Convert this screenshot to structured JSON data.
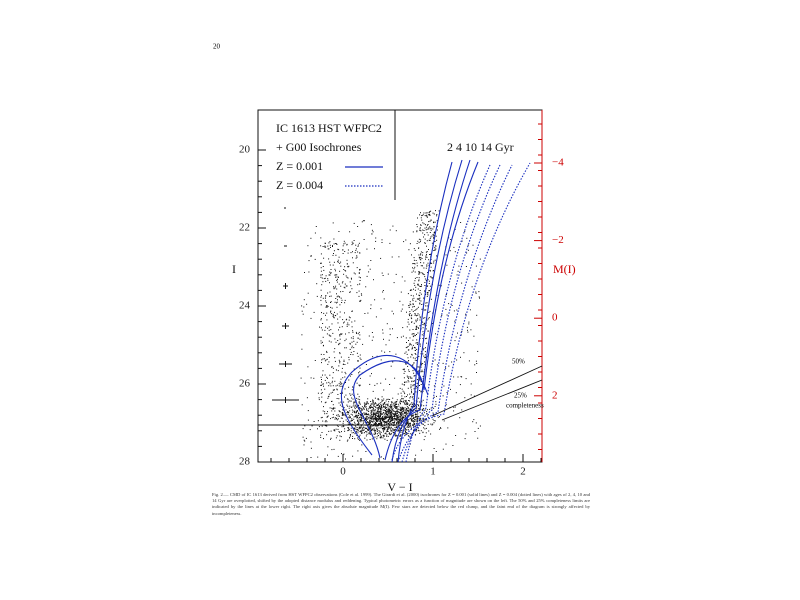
{
  "page_number": "20",
  "figure": {
    "legend": [
      "IC 1613 HST WFPC2",
      "+ G00 Isochrones",
      "Z = 0.001",
      "Z = 0.004"
    ],
    "ages_label": "2 4 10 14  Gyr",
    "y_label": "I",
    "x_label": "V − I",
    "y2_label": "M(I)",
    "y_tick_labels": [
      "20",
      "22",
      "24",
      "26",
      "28"
    ],
    "x_tick_labels": [
      "0",
      "1",
      "2"
    ],
    "y2_tick_labels": [
      "−4",
      "−2",
      "0",
      "2"
    ],
    "completeness_labels": [
      "50%",
      "25%",
      "completeness"
    ]
  },
  "caption": "Fig. 2.— CMD of IC 1613 derived from HST WFPC2 observations (Cole et al. 1999). The Girardi et al. (2000) isochrones for Z = 0.001 (solid lines) and Z = 0.004 (dotted lines) with ages of 2, 4, 10 and 14 Gyr are overplotted, shifted by the adopted distance modulus and reddening. Typical photometric errors as a function of magnitude are shown on the left. The 50% and 25% completeness limits are indicated by the lines at the lower right. The right axis gives the absolute magnitude M(I). Few stars are detected below the red clump, and the faint end of the diagram is strongly affected by incompleteness."
}
